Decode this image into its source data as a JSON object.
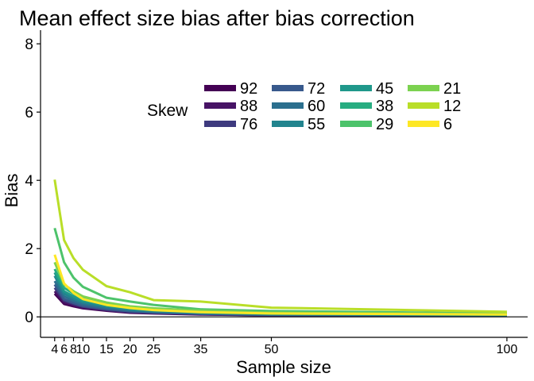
{
  "chart_data": {
    "type": "line",
    "title": "Mean effect size bias after bias correction",
    "xlabel": "Sample size",
    "ylabel": "Bias",
    "x": [
      4,
      6,
      8,
      10,
      15,
      20,
      25,
      35,
      50,
      100
    ],
    "xticks": [
      "4",
      "6",
      "8",
      "10",
      "15",
      "20",
      "25",
      "35",
      "50",
      "100"
    ],
    "ylim": [
      -0.6,
      8.4
    ],
    "yticks": [
      "0",
      "2",
      "4",
      "6",
      "8"
    ],
    "grid": false,
    "legend": {
      "title": "Skew",
      "placement": "top-right",
      "columns": 4
    },
    "series": [
      {
        "name": "92",
        "color": "#440154",
        "values": [
          0.68,
          0.38,
          0.31,
          0.25,
          0.18,
          0.12,
          0.1,
          0.07,
          0.05,
          0.03
        ]
      },
      {
        "name": "88",
        "color": "#471365",
        "values": [
          0.75,
          0.42,
          0.34,
          0.27,
          0.19,
          0.13,
          0.11,
          0.08,
          0.05,
          0.03
        ]
      },
      {
        "name": "76",
        "color": "#3E3A7E",
        "values": [
          0.85,
          0.48,
          0.38,
          0.3,
          0.21,
          0.15,
          0.12,
          0.09,
          0.06,
          0.04
        ]
      },
      {
        "name": "72",
        "color": "#38598C",
        "values": [
          0.95,
          0.52,
          0.41,
          0.32,
          0.23,
          0.16,
          0.13,
          0.09,
          0.06,
          0.04
        ]
      },
      {
        "name": "60",
        "color": "#2B6F8E",
        "values": [
          1.05,
          0.6,
          0.47,
          0.37,
          0.26,
          0.19,
          0.15,
          0.1,
          0.07,
          0.05
        ]
      },
      {
        "name": "55",
        "color": "#22848E",
        "values": [
          1.2,
          0.68,
          0.54,
          0.42,
          0.3,
          0.21,
          0.17,
          0.12,
          0.08,
          0.05
        ]
      },
      {
        "name": "45",
        "color": "#1F988B",
        "values": [
          1.3,
          0.75,
          0.6,
          0.47,
          0.33,
          0.24,
          0.19,
          0.13,
          0.09,
          0.06
        ]
      },
      {
        "name": "38",
        "color": "#27AD81",
        "values": [
          1.4,
          0.85,
          0.68,
          0.53,
          0.38,
          0.28,
          0.22,
          0.15,
          0.1,
          0.07
        ]
      },
      {
        "name": "29",
        "color": "#4DC36B",
        "values": [
          2.6,
          1.6,
          1.15,
          0.88,
          0.56,
          0.45,
          0.35,
          0.22,
          0.17,
          0.1
        ]
      },
      {
        "name": "21",
        "color": "#7CD250",
        "values": [
          1.6,
          0.95,
          0.75,
          0.6,
          0.42,
          0.31,
          0.25,
          0.18,
          0.12,
          0.08
        ]
      },
      {
        "name": "12",
        "color": "#B9DE28",
        "values": [
          4.02,
          2.25,
          1.72,
          1.38,
          0.9,
          0.72,
          0.49,
          0.45,
          0.27,
          0.15
        ]
      },
      {
        "name": "6",
        "color": "#FDE725",
        "values": [
          1.82,
          0.98,
          0.7,
          0.52,
          0.35,
          0.26,
          0.2,
          0.14,
          0.1,
          0.07
        ]
      }
    ]
  }
}
